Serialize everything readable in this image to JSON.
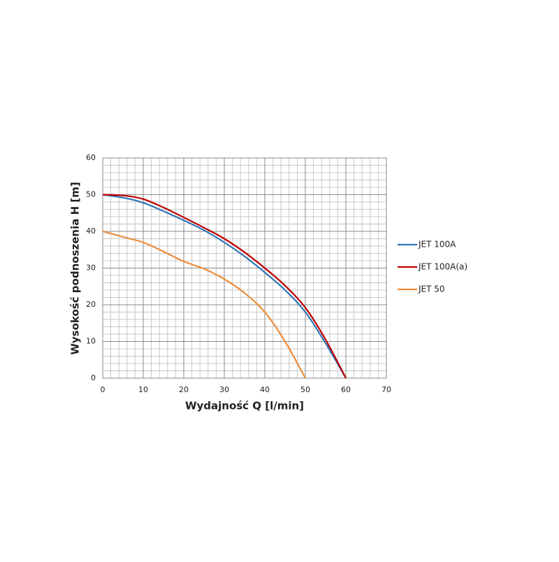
{
  "chart_data": {
    "type": "line",
    "x_label": "Wydajność Q [l/min]",
    "y_label": "Wysokość podnoszenia H [m]",
    "x": [
      0,
      5,
      10,
      15,
      20,
      25,
      30,
      35,
      40,
      45,
      50,
      55,
      60
    ],
    "series": [
      {
        "name": "JET 100A",
        "color": "#2e75b6",
        "values": [
          50,
          49.2,
          47.8,
          45.5,
          43,
          40.3,
          37,
          33.2,
          28.8,
          24,
          18,
          9.5,
          0
        ]
      },
      {
        "name": "JET 100A(a)",
        "color": "#c00000",
        "values": [
          50,
          49.8,
          48.8,
          46.5,
          43.8,
          41,
          38,
          34.3,
          30,
          25.2,
          19.2,
          10.5,
          0
        ]
      },
      {
        "name": "JET 50",
        "color": "#ed8c3a",
        "values": [
          40,
          38.5,
          37,
          34.5,
          31.8,
          29.8,
          27,
          23.2,
          18,
          10,
          0,
          null,
          null
        ]
      }
    ],
    "xlim": [
      0,
      70
    ],
    "xticks": [
      0,
      10,
      20,
      30,
      40,
      50,
      60,
      70
    ],
    "ylim": [
      0,
      60
    ],
    "yticks": [
      0,
      10,
      20,
      30,
      40,
      50,
      60
    ],
    "grid": true,
    "legend": "right"
  }
}
